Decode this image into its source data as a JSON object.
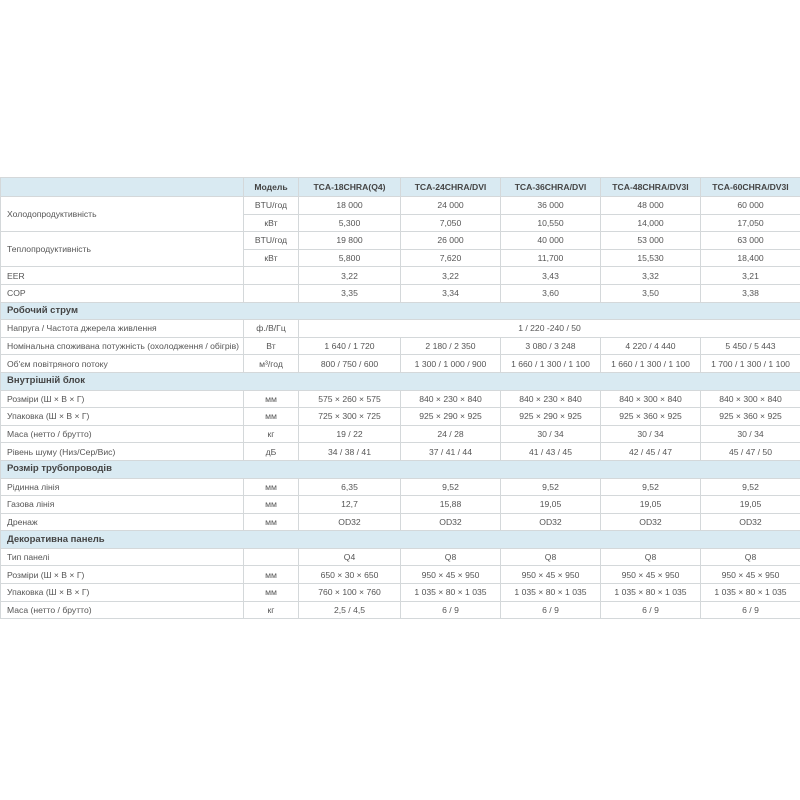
{
  "table": {
    "header": {
      "label": "Модель",
      "models": [
        "TCA-18CHRA(Q4)",
        "TCA-24CHRA/DVI",
        "TCA-36CHRA/DVI",
        "TCA-48CHRA/DV3I",
        "TCA-60CHRA/DV3I"
      ]
    },
    "rows": [
      {
        "label": "Холодопродуктивність",
        "parts": [
          {
            "unit": "BTU/год",
            "values": [
              "18 000",
              "24 000",
              "36 000",
              "48 000",
              "60 000"
            ]
          },
          {
            "unit": "кВт",
            "values": [
              "5,300",
              "7,050",
              "10,550",
              "14,000",
              "17,050"
            ]
          }
        ]
      },
      {
        "label": "Теплопродуктивність",
        "parts": [
          {
            "unit": "BTU/год",
            "values": [
              "19 800",
              "26 000",
              "40 000",
              "53 000",
              "63 000"
            ]
          },
          {
            "unit": "кВт",
            "values": [
              "5,800",
              "7,620",
              "11,700",
              "15,530",
              "18,400"
            ]
          }
        ]
      },
      {
        "label": "EER",
        "values": [
          "3,22",
          "3,22",
          "3,43",
          "3,32",
          "3,21"
        ]
      },
      {
        "label": "COP",
        "values": [
          "3,35",
          "3,34",
          "3,60",
          "3,50",
          "3,38"
        ]
      },
      {
        "section": "Робочий струм"
      },
      {
        "label": "Напруга / Частота джерела живлення",
        "unit": "ф./В/Гц",
        "value": "1 / 220 -240 / 50"
      },
      {
        "label": "Номінальна споживана потужність (охолодження / обігрів)",
        "unit": "Вт",
        "values": [
          "1 640 / 1 720",
          "2 180 / 2 350",
          "3 080 / 3 248",
          "4 220 / 4 440",
          "5 450 / 5 443"
        ]
      },
      {
        "label": "Об'єм повітряного потоку",
        "unit": "м³/год",
        "values": [
          "800 / 750 / 600",
          "1 300 / 1 000 / 900",
          "1 660 / 1 300 / 1 100",
          "1 660 / 1 300 / 1 100",
          "1 700 / 1 300 / 1 100"
        ]
      },
      {
        "section": "Внутрішній блок"
      },
      {
        "label": "Розміри (Ш × В × Г)",
        "unit": "мм",
        "values": [
          "575 × 260 × 575",
          "840 × 230 × 840",
          "840 × 230 × 840",
          "840 × 300 × 840",
          "840 × 300 × 840"
        ]
      },
      {
        "label": "Упаковка (Ш × В × Г)",
        "unit": "мм",
        "values": [
          "725 × 300 × 725",
          "925 × 290 × 925",
          "925 × 290 × 925",
          "925 × 360 × 925",
          "925 × 360 × 925"
        ]
      },
      {
        "label": "Маса (нетто / брутто)",
        "unit": "кг",
        "values": [
          "19 / 22",
          "24 / 28",
          "30 / 34",
          "30 / 34",
          "30 / 34"
        ]
      },
      {
        "label": "Рівень шуму (Низ/Сер/Вис)",
        "unit": "дБ",
        "values": [
          "34 / 38 / 41",
          "37 / 41 / 44",
          "41 / 43 / 45",
          "42 / 45 / 47",
          "45 / 47 / 50"
        ]
      },
      {
        "section": "Розмір трубопроводів"
      },
      {
        "label": "Рідинна лінія",
        "unit": "мм",
        "values": [
          "6,35",
          "9,52",
          "9,52",
          "9,52",
          "9,52"
        ]
      },
      {
        "label": "Газова лінія",
        "unit": "мм",
        "values": [
          "12,7",
          "15,88",
          "19,05",
          "19,05",
          "19,05"
        ]
      },
      {
        "label": "Дренаж",
        "unit": "мм",
        "values": [
          "OD32",
          "OD32",
          "OD32",
          "OD32",
          "OD32"
        ]
      },
      {
        "section": "Декоративна панель"
      },
      {
        "label": "Тип панелі",
        "values": [
          "Q4",
          "Q8",
          "Q8",
          "Q8",
          "Q8"
        ]
      },
      {
        "label": "Розміри (Ш × В × Г)",
        "unit": "мм",
        "values": [
          "650 × 30 × 650",
          "950 × 45 × 950",
          "950 × 45 × 950",
          "950 × 45 × 950",
          "950 × 45 × 950"
        ]
      },
      {
        "label": "Упаковка (Ш × В × Г)",
        "unit": "мм",
        "values": [
          "760 × 100 × 760",
          "1 035 × 80 × 1 035",
          "1 035 × 80 × 1 035",
          "1 035 × 80 × 1 035",
          "1 035 × 80 × 1 035"
        ]
      },
      {
        "label": "Маса (нетто / брутто)",
        "unit": "кг",
        "values": [
          "2,5 / 4,5",
          "6 / 9",
          "6 / 9",
          "6 / 9",
          "6 / 9"
        ]
      }
    ]
  }
}
